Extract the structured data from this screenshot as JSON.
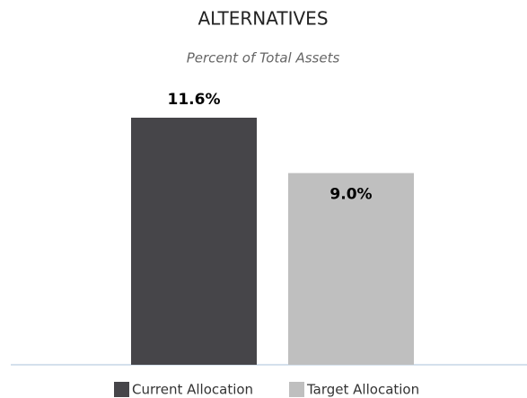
{
  "chart_data": {
    "type": "bar",
    "title": "ALTERNATIVES",
    "subtitle": "Percent of Total Assets",
    "categories": [
      null
    ],
    "series": [
      {
        "name": "Current Allocation",
        "color": "#464549",
        "values": [
          11.6
        ],
        "value_labels": [
          "11.6%"
        ]
      },
      {
        "name": "Target Allocation",
        "color": "#bfbfbf",
        "values": [
          9.0
        ],
        "value_labels": [
          "9.0%"
        ]
      }
    ],
    "legend": "bottom"
  }
}
